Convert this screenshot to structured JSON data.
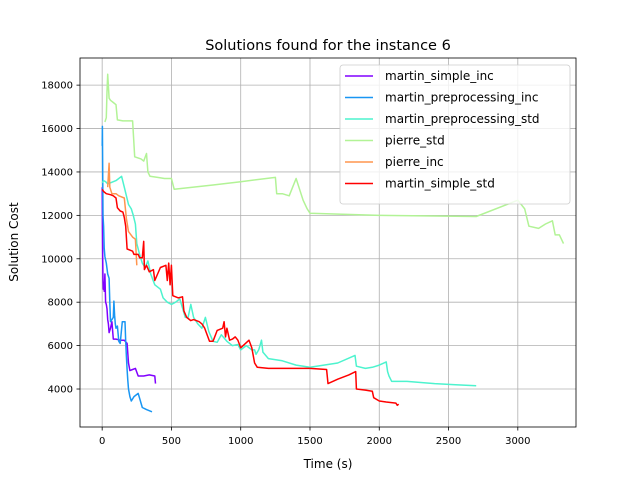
{
  "chart_data": {
    "type": "line",
    "title": "Solutions found for the instance 6",
    "xlabel": "Time (s)",
    "ylabel": "Solution Cost",
    "xlim": [
      -160,
      3420
    ],
    "ylim": [
      2250,
      19250
    ],
    "xticks": [
      0,
      500,
      1000,
      1500,
      2000,
      2500,
      3000
    ],
    "yticks": [
      4000,
      6000,
      8000,
      10000,
      12000,
      14000,
      16000,
      18000
    ],
    "grid": true,
    "legend_position": "top-right",
    "series": [
      {
        "name": "martin_simple_inc",
        "color": "#8000ff",
        "points": [
          [
            0,
            13300
          ],
          [
            2,
            11500
          ],
          [
            4,
            10000
          ],
          [
            6,
            9000
          ],
          [
            8,
            8600
          ],
          [
            12,
            8800
          ],
          [
            15,
            8500
          ],
          [
            20,
            9300
          ],
          [
            25,
            8000
          ],
          [
            30,
            7900
          ],
          [
            35,
            7700
          ],
          [
            40,
            7200
          ],
          [
            45,
            7000
          ],
          [
            50,
            6600
          ],
          [
            60,
            6800
          ],
          [
            70,
            7100
          ],
          [
            80,
            6300
          ],
          [
            100,
            6300
          ],
          [
            130,
            6250
          ],
          [
            160,
            6250
          ],
          [
            180,
            6100
          ],
          [
            190,
            5200
          ],
          [
            200,
            4850
          ],
          [
            220,
            4900
          ],
          [
            240,
            4950
          ],
          [
            260,
            4600
          ],
          [
            300,
            4600
          ],
          [
            340,
            4650
          ],
          [
            380,
            4600
          ],
          [
            385,
            4250
          ]
        ]
      },
      {
        "name": "martin_preprocessing_inc",
        "color": "#1996f3",
        "points": [
          [
            0,
            15200
          ],
          [
            2,
            16100
          ],
          [
            4,
            14000
          ],
          [
            6,
            12000
          ],
          [
            10,
            11500
          ],
          [
            15,
            10500
          ],
          [
            20,
            10100
          ],
          [
            30,
            9800
          ],
          [
            40,
            9300
          ],
          [
            50,
            9100
          ],
          [
            55,
            8000
          ],
          [
            60,
            7100
          ],
          [
            70,
            7200
          ],
          [
            80,
            7300
          ],
          [
            85,
            8050
          ],
          [
            90,
            7400
          ],
          [
            95,
            7000
          ],
          [
            100,
            6800
          ],
          [
            110,
            6900
          ],
          [
            120,
            6200
          ],
          [
            130,
            6100
          ],
          [
            145,
            7100
          ],
          [
            165,
            7100
          ],
          [
            170,
            6200
          ],
          [
            175,
            5500
          ],
          [
            180,
            4900
          ],
          [
            185,
            4400
          ],
          [
            190,
            4000
          ],
          [
            200,
            3650
          ],
          [
            210,
            3450
          ],
          [
            230,
            3650
          ],
          [
            260,
            3800
          ],
          [
            290,
            3150
          ],
          [
            320,
            3050
          ],
          [
            360,
            2950
          ]
        ]
      },
      {
        "name": "martin_preprocessing_std",
        "color": "#4df3ce",
        "points": [
          [
            0,
            13500
          ],
          [
            10,
            13600
          ],
          [
            25,
            13550
          ],
          [
            40,
            13450
          ],
          [
            60,
            13500
          ],
          [
            100,
            13600
          ],
          [
            140,
            13800
          ],
          [
            160,
            13300
          ],
          [
            190,
            12500
          ],
          [
            210,
            12300
          ],
          [
            225,
            12000
          ],
          [
            240,
            11600
          ],
          [
            250,
            10700
          ],
          [
            270,
            10200
          ],
          [
            290,
            9800
          ],
          [
            310,
            9600
          ],
          [
            330,
            9900
          ],
          [
            350,
            9300
          ],
          [
            380,
            8800
          ],
          [
            420,
            8600
          ],
          [
            440,
            8200
          ],
          [
            470,
            8000
          ],
          [
            500,
            7900
          ],
          [
            530,
            8000
          ],
          [
            560,
            8150
          ],
          [
            600,
            7300
          ],
          [
            620,
            7300
          ],
          [
            640,
            7900
          ],
          [
            660,
            7300
          ],
          [
            690,
            7000
          ],
          [
            720,
            6800
          ],
          [
            745,
            7300
          ],
          [
            770,
            6650
          ],
          [
            800,
            6200
          ],
          [
            830,
            6150
          ],
          [
            860,
            6500
          ],
          [
            900,
            6200
          ],
          [
            940,
            6000
          ],
          [
            980,
            6050
          ],
          [
            1000,
            5800
          ],
          [
            1040,
            6000
          ],
          [
            1080,
            5800
          ],
          [
            1100,
            5800
          ],
          [
            1110,
            5600
          ],
          [
            1130,
            5800
          ],
          [
            1150,
            6250
          ],
          [
            1160,
            5700
          ],
          [
            1200,
            5400
          ],
          [
            1300,
            5300
          ],
          [
            1400,
            5100
          ],
          [
            1500,
            5000
          ],
          [
            1700,
            5200
          ],
          [
            1825,
            5550
          ],
          [
            1835,
            5050
          ],
          [
            1900,
            4950
          ],
          [
            1950,
            5000
          ],
          [
            2000,
            5100
          ],
          [
            2050,
            5250
          ],
          [
            2060,
            4800
          ],
          [
            2070,
            4600
          ],
          [
            2090,
            4350
          ],
          [
            2200,
            4350
          ],
          [
            2400,
            4250
          ],
          [
            2550,
            4200
          ],
          [
            2700,
            4150
          ]
        ]
      },
      {
        "name": "pierre_std",
        "color": "#b2f396",
        "points": [
          [
            20,
            16300
          ],
          [
            30,
            16500
          ],
          [
            35,
            17700
          ],
          [
            40,
            18500
          ],
          [
            50,
            17400
          ],
          [
            60,
            17300
          ],
          [
            80,
            17200
          ],
          [
            100,
            17100
          ],
          [
            110,
            16400
          ],
          [
            150,
            16350
          ],
          [
            220,
            16350
          ],
          [
            235,
            14700
          ],
          [
            280,
            14600
          ],
          [
            300,
            14500
          ],
          [
            320,
            14850
          ],
          [
            330,
            14000
          ],
          [
            345,
            13800
          ],
          [
            400,
            13750
          ],
          [
            450,
            13700
          ],
          [
            500,
            13700
          ],
          [
            520,
            13200
          ],
          [
            800,
            13400
          ],
          [
            1000,
            13550
          ],
          [
            1250,
            13750
          ],
          [
            1260,
            13000
          ],
          [
            1300,
            13000
          ],
          [
            1350,
            12900
          ],
          [
            1400,
            13700
          ],
          [
            1450,
            12700
          ],
          [
            1480,
            12300
          ],
          [
            1500,
            12100
          ],
          [
            2000,
            12000
          ],
          [
            2700,
            11950
          ],
          [
            3000,
            12700
          ],
          [
            3050,
            12300
          ],
          [
            3080,
            11500
          ],
          [
            3150,
            11400
          ],
          [
            3200,
            11600
          ],
          [
            3250,
            11750
          ],
          [
            3270,
            11100
          ],
          [
            3300,
            11100
          ],
          [
            3330,
            10700
          ]
        ]
      },
      {
        "name": "pierre_inc",
        "color": "#ff954e",
        "points": [
          [
            40,
            13300
          ],
          [
            50,
            14400
          ],
          [
            55,
            13300
          ],
          [
            70,
            13000
          ],
          [
            100,
            13000
          ],
          [
            120,
            12900
          ],
          [
            160,
            12800
          ],
          [
            175,
            11850
          ],
          [
            190,
            11250
          ],
          [
            220,
            11000
          ],
          [
            240,
            10900
          ],
          [
            250,
            9700
          ]
        ]
      },
      {
        "name": "martin_simple_std",
        "color": "#ff0000",
        "points": [
          [
            0,
            13200
          ],
          [
            10,
            13100
          ],
          [
            30,
            13000
          ],
          [
            60,
            12950
          ],
          [
            80,
            12900
          ],
          [
            100,
            12800
          ],
          [
            110,
            12350
          ],
          [
            130,
            12200
          ],
          [
            150,
            12150
          ],
          [
            160,
            11900
          ],
          [
            170,
            11500
          ],
          [
            180,
            10450
          ],
          [
            220,
            10350
          ],
          [
            230,
            10200
          ],
          [
            260,
            10200
          ],
          [
            270,
            10050
          ],
          [
            290,
            10050
          ],
          [
            300,
            10800
          ],
          [
            305,
            9500
          ],
          [
            320,
            9700
          ],
          [
            340,
            9400
          ],
          [
            370,
            9500
          ],
          [
            380,
            9000
          ],
          [
            420,
            9600
          ],
          [
            460,
            9700
          ],
          [
            470,
            9000
          ],
          [
            480,
            9800
          ],
          [
            490,
            8800
          ],
          [
            500,
            9700
          ],
          [
            510,
            8300
          ],
          [
            550,
            8200
          ],
          [
            580,
            8250
          ],
          [
            590,
            7600
          ],
          [
            610,
            7300
          ],
          [
            640,
            7150
          ],
          [
            660,
            7200
          ],
          [
            700,
            7100
          ],
          [
            720,
            7000
          ],
          [
            740,
            6800
          ],
          [
            775,
            6200
          ],
          [
            800,
            6200
          ],
          [
            830,
            6700
          ],
          [
            870,
            6800
          ],
          [
            880,
            7100
          ],
          [
            890,
            6400
          ],
          [
            900,
            6800
          ],
          [
            920,
            6250
          ],
          [
            940,
            6300
          ],
          [
            960,
            6400
          ],
          [
            980,
            6250
          ],
          [
            1000,
            5900
          ],
          [
            1060,
            6250
          ],
          [
            1080,
            5900
          ],
          [
            1100,
            5200
          ],
          [
            1120,
            5000
          ],
          [
            1200,
            4950
          ],
          [
            1400,
            4950
          ],
          [
            1500,
            4950
          ],
          [
            1620,
            4900
          ],
          [
            1630,
            4250
          ],
          [
            1700,
            4450
          ],
          [
            1780,
            4650
          ],
          [
            1830,
            4800
          ],
          [
            1835,
            4000
          ],
          [
            1900,
            3950
          ],
          [
            1950,
            3900
          ],
          [
            1960,
            3600
          ],
          [
            2000,
            3450
          ],
          [
            2050,
            3400
          ],
          [
            2120,
            3350
          ],
          [
            2130,
            3250
          ],
          [
            2140,
            3300
          ]
        ]
      }
    ]
  }
}
